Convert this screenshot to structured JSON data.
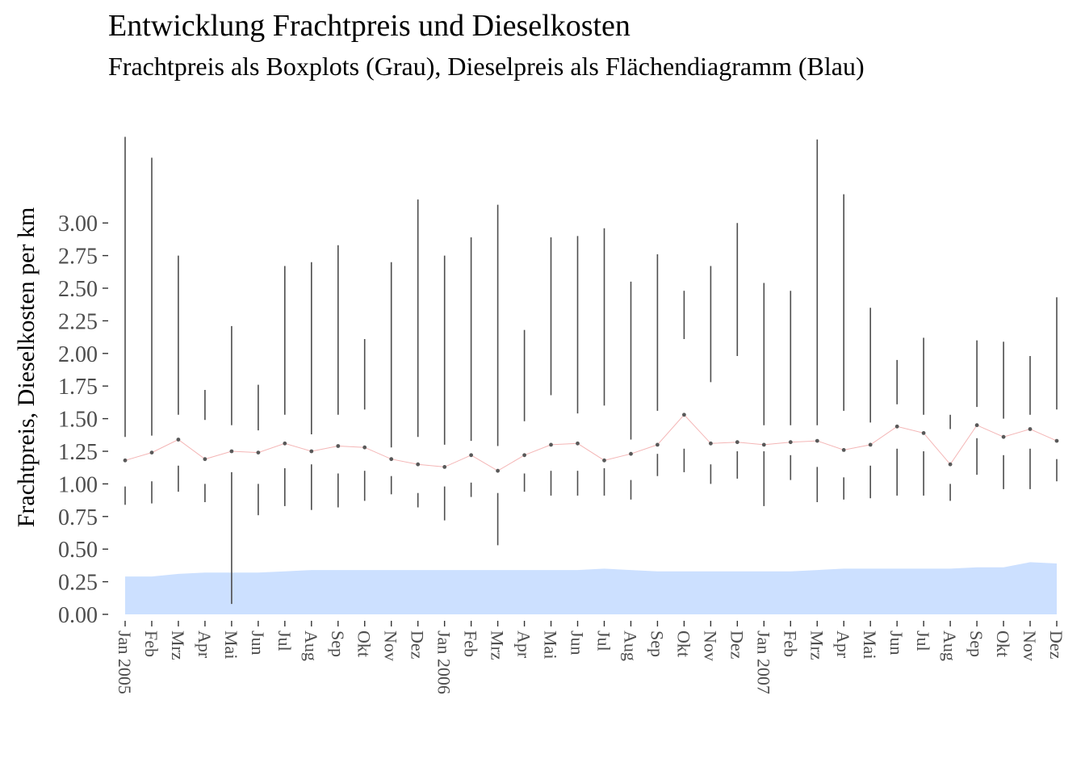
{
  "chart_data": {
    "type": "boxplot+area",
    "title": "Entwicklung Frachtpreis und Dieselkosten",
    "subtitle": "Frachtpreis als Boxplots (Grau), Dieselpreis als Flächendiagramm (Blau)",
    "ylabel": "Frachtpreis, Dieselkosten per km",
    "xlabel": "",
    "ylim": [
      0,
      3.0
    ],
    "y_ticks": [
      0.0,
      0.25,
      0.5,
      0.75,
      1.0,
      1.25,
      1.5,
      1.75,
      2.0,
      2.25,
      2.5,
      2.75,
      3.0
    ],
    "y_tick_labels": [
      "0.00",
      "0.25",
      "0.50",
      "0.75",
      "1.00",
      "1.25",
      "1.50",
      "1.75",
      "2.00",
      "2.25",
      "2.50",
      "2.75",
      "3.00"
    ],
    "categories": [
      "Jan 2005",
      "Feb",
      "Mrz",
      "Apr",
      "Mai",
      "Jun",
      "Jul",
      "Aug",
      "Sep",
      "Okt",
      "Nov",
      "Dez",
      "Jan 2006",
      "Feb",
      "Mrz",
      "Apr",
      "Mai",
      "Jun",
      "Jul",
      "Aug",
      "Sep",
      "Okt",
      "Nov",
      "Dez",
      "Jan 2007",
      "Feb",
      "Mrz",
      "Apr",
      "Mai",
      "Jun",
      "Jul",
      "Aug",
      "Sep",
      "Okt",
      "Nov",
      "Dez"
    ],
    "frachtpreis_whiskers": [
      {
        "low": [
          0.84,
          0.98
        ],
        "high": [
          1.36,
          3.66
        ]
      },
      {
        "low": [
          0.85,
          1.02
        ],
        "high": [
          1.37,
          3.5
        ]
      },
      {
        "low": [
          0.94,
          1.14
        ],
        "high": [
          1.53,
          2.75
        ]
      },
      {
        "low": [
          0.86,
          1.0
        ],
        "high": [
          1.49,
          1.72
        ]
      },
      {
        "low": [
          0.08,
          1.09
        ],
        "high": [
          1.45,
          2.21
        ]
      },
      {
        "low": [
          0.76,
          1.0
        ],
        "high": [
          1.41,
          1.76
        ]
      },
      {
        "low": [
          0.83,
          1.12
        ],
        "high": [
          1.53,
          2.67
        ]
      },
      {
        "low": [
          0.8,
          1.15
        ],
        "high": [
          1.38,
          2.7
        ]
      },
      {
        "low": [
          0.82,
          1.08
        ],
        "high": [
          1.53,
          2.83
        ]
      },
      {
        "low": [
          0.87,
          1.1
        ],
        "high": [
          1.57,
          2.11
        ]
      },
      {
        "low": [
          0.92,
          1.06
        ],
        "high": [
          1.28,
          2.7
        ]
      },
      {
        "low": [
          0.82,
          0.93
        ],
        "high": [
          1.36,
          3.18
        ]
      },
      {
        "low": [
          0.72,
          0.98
        ],
        "high": [
          1.3,
          2.75
        ]
      },
      {
        "low": [
          0.9,
          1.01
        ],
        "high": [
          1.33,
          2.89
        ]
      },
      {
        "low": [
          0.53,
          0.93
        ],
        "high": [
          1.29,
          3.14
        ]
      },
      {
        "low": [
          0.94,
          1.08
        ],
        "high": [
          1.48,
          2.18
        ]
      },
      {
        "low": [
          0.91,
          1.1
        ],
        "high": [
          1.68,
          2.89
        ]
      },
      {
        "low": [
          0.91,
          1.1
        ],
        "high": [
          1.54,
          2.9
        ]
      },
      {
        "low": [
          0.91,
          1.12
        ],
        "high": [
          1.6,
          2.96
        ]
      },
      {
        "low": [
          0.88,
          1.03
        ],
        "high": [
          1.34,
          2.55
        ]
      },
      {
        "low": [
          1.06,
          1.23
        ],
        "high": [
          1.56,
          2.76
        ]
      },
      {
        "low": [
          1.09,
          1.27
        ],
        "high": [
          2.11,
          2.48
        ]
      },
      {
        "low": [
          1.0,
          1.15
        ],
        "high": [
          1.78,
          2.67
        ]
      },
      {
        "low": [
          1.04,
          1.25
        ],
        "high": [
          1.98,
          3.0
        ]
      },
      {
        "low": [
          0.83,
          1.25
        ],
        "high": [
          1.45,
          2.54
        ]
      },
      {
        "low": [
          1.03,
          1.22
        ],
        "high": [
          1.45,
          2.48
        ]
      },
      {
        "low": [
          0.86,
          1.13
        ],
        "high": [
          1.45,
          3.64
        ]
      },
      {
        "low": [
          0.88,
          1.05
        ],
        "high": [
          1.56,
          3.22
        ]
      },
      {
        "low": [
          0.89,
          1.14
        ],
        "high": [
          1.47,
          2.35
        ]
      },
      {
        "low": [
          0.91,
          1.27
        ],
        "high": [
          1.61,
          1.95
        ]
      },
      {
        "low": [
          0.91,
          1.25
        ],
        "high": [
          1.53,
          2.12
        ]
      },
      {
        "low": [
          0.87,
          1.0
        ],
        "high": [
          1.42,
          1.53
        ]
      },
      {
        "low": [
          1.07,
          1.35
        ],
        "high": [
          1.59,
          2.1
        ]
      },
      {
        "low": [
          0.96,
          1.22
        ],
        "high": [
          1.5,
          2.09
        ]
      },
      {
        "low": [
          0.96,
          1.27
        ],
        "high": [
          1.53,
          1.98
        ]
      },
      {
        "low": [
          1.02,
          1.19
        ],
        "high": [
          1.57,
          2.43
        ]
      }
    ],
    "frachtpreis_median": [
      1.18,
      1.24,
      1.34,
      1.19,
      1.25,
      1.24,
      1.31,
      1.25,
      1.29,
      1.28,
      1.19,
      1.15,
      1.13,
      1.22,
      1.1,
      1.22,
      1.3,
      1.31,
      1.18,
      1.23,
      1.3,
      1.53,
      1.31,
      1.32,
      1.3,
      1.32,
      1.33,
      1.26,
      1.3,
      1.44,
      1.39,
      1.15,
      1.45,
      1.36,
      1.42,
      1.33
    ],
    "dieselpreis": [
      0.29,
      0.29,
      0.31,
      0.32,
      0.32,
      0.32,
      0.33,
      0.34,
      0.34,
      0.34,
      0.34,
      0.34,
      0.34,
      0.34,
      0.34,
      0.34,
      0.34,
      0.34,
      0.35,
      0.34,
      0.33,
      0.33,
      0.33,
      0.33,
      0.33,
      0.33,
      0.34,
      0.35,
      0.35,
      0.35,
      0.35,
      0.35,
      0.36,
      0.36,
      0.4,
      0.39
    ],
    "grid": false,
    "legend": "none",
    "colors": {
      "area": "#cce0ff",
      "whisker": "#4d4d4d",
      "median_point": "#595959",
      "median_line": "#f4b6b6",
      "tick_text": "#4d4d4d"
    }
  }
}
